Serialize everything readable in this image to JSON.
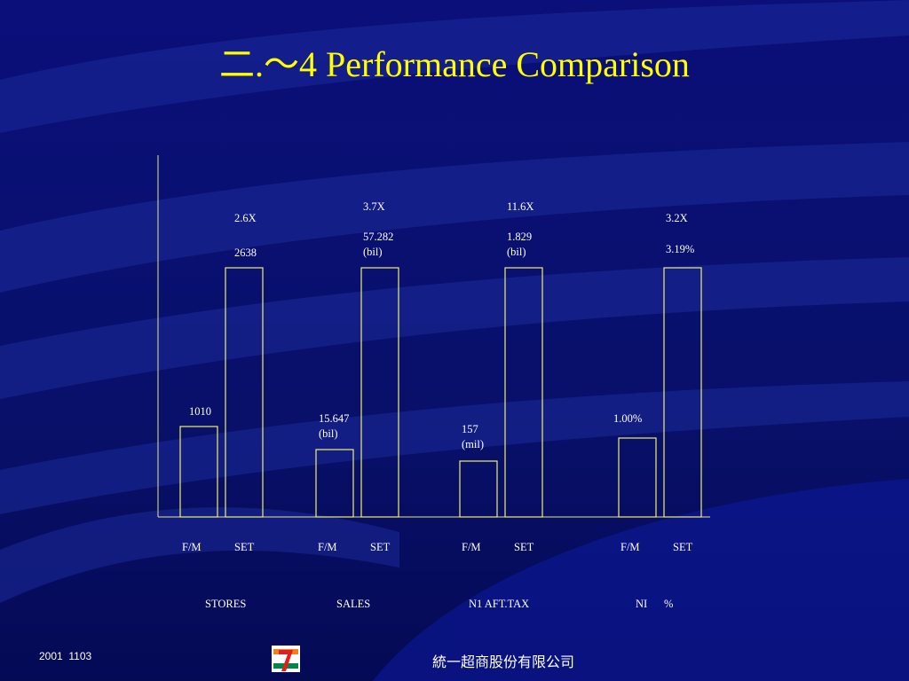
{
  "title": "二.～4 Performance Comparison",
  "groups": [
    {
      "name": "STORES",
      "fm": {
        "label": "F/M",
        "value_lines": [
          "1010"
        ]
      },
      "set": {
        "label": "SET",
        "ratio": "2.6X",
        "value_lines": [
          "2638"
        ]
      }
    },
    {
      "name": "SALES",
      "fm": {
        "label": "F/M",
        "value_lines": [
          "15.647",
          "(bil)"
        ]
      },
      "set": {
        "label": "SET",
        "ratio": "3.7X",
        "value_lines": [
          "57.282",
          "(bil)"
        ]
      }
    },
    {
      "name": "N1 AFT.TAX",
      "fm": {
        "label": "F/M",
        "value_lines": [
          "157",
          "(mil)"
        ]
      },
      "set": {
        "label": "SET",
        "ratio": "11.6X",
        "value_lines": [
          "1.829",
          "(bil)"
        ]
      }
    },
    {
      "name": "NI      %",
      "fm": {
        "label": "F/M",
        "value_lines": [
          "1.00%"
        ]
      },
      "set": {
        "label": "SET",
        "ratio": "3.2X",
        "value_lines": [
          "3.19%"
        ]
      }
    }
  ],
  "footer": {
    "date": "2001  1103",
    "company": "統一超商股份有限公司"
  }
}
